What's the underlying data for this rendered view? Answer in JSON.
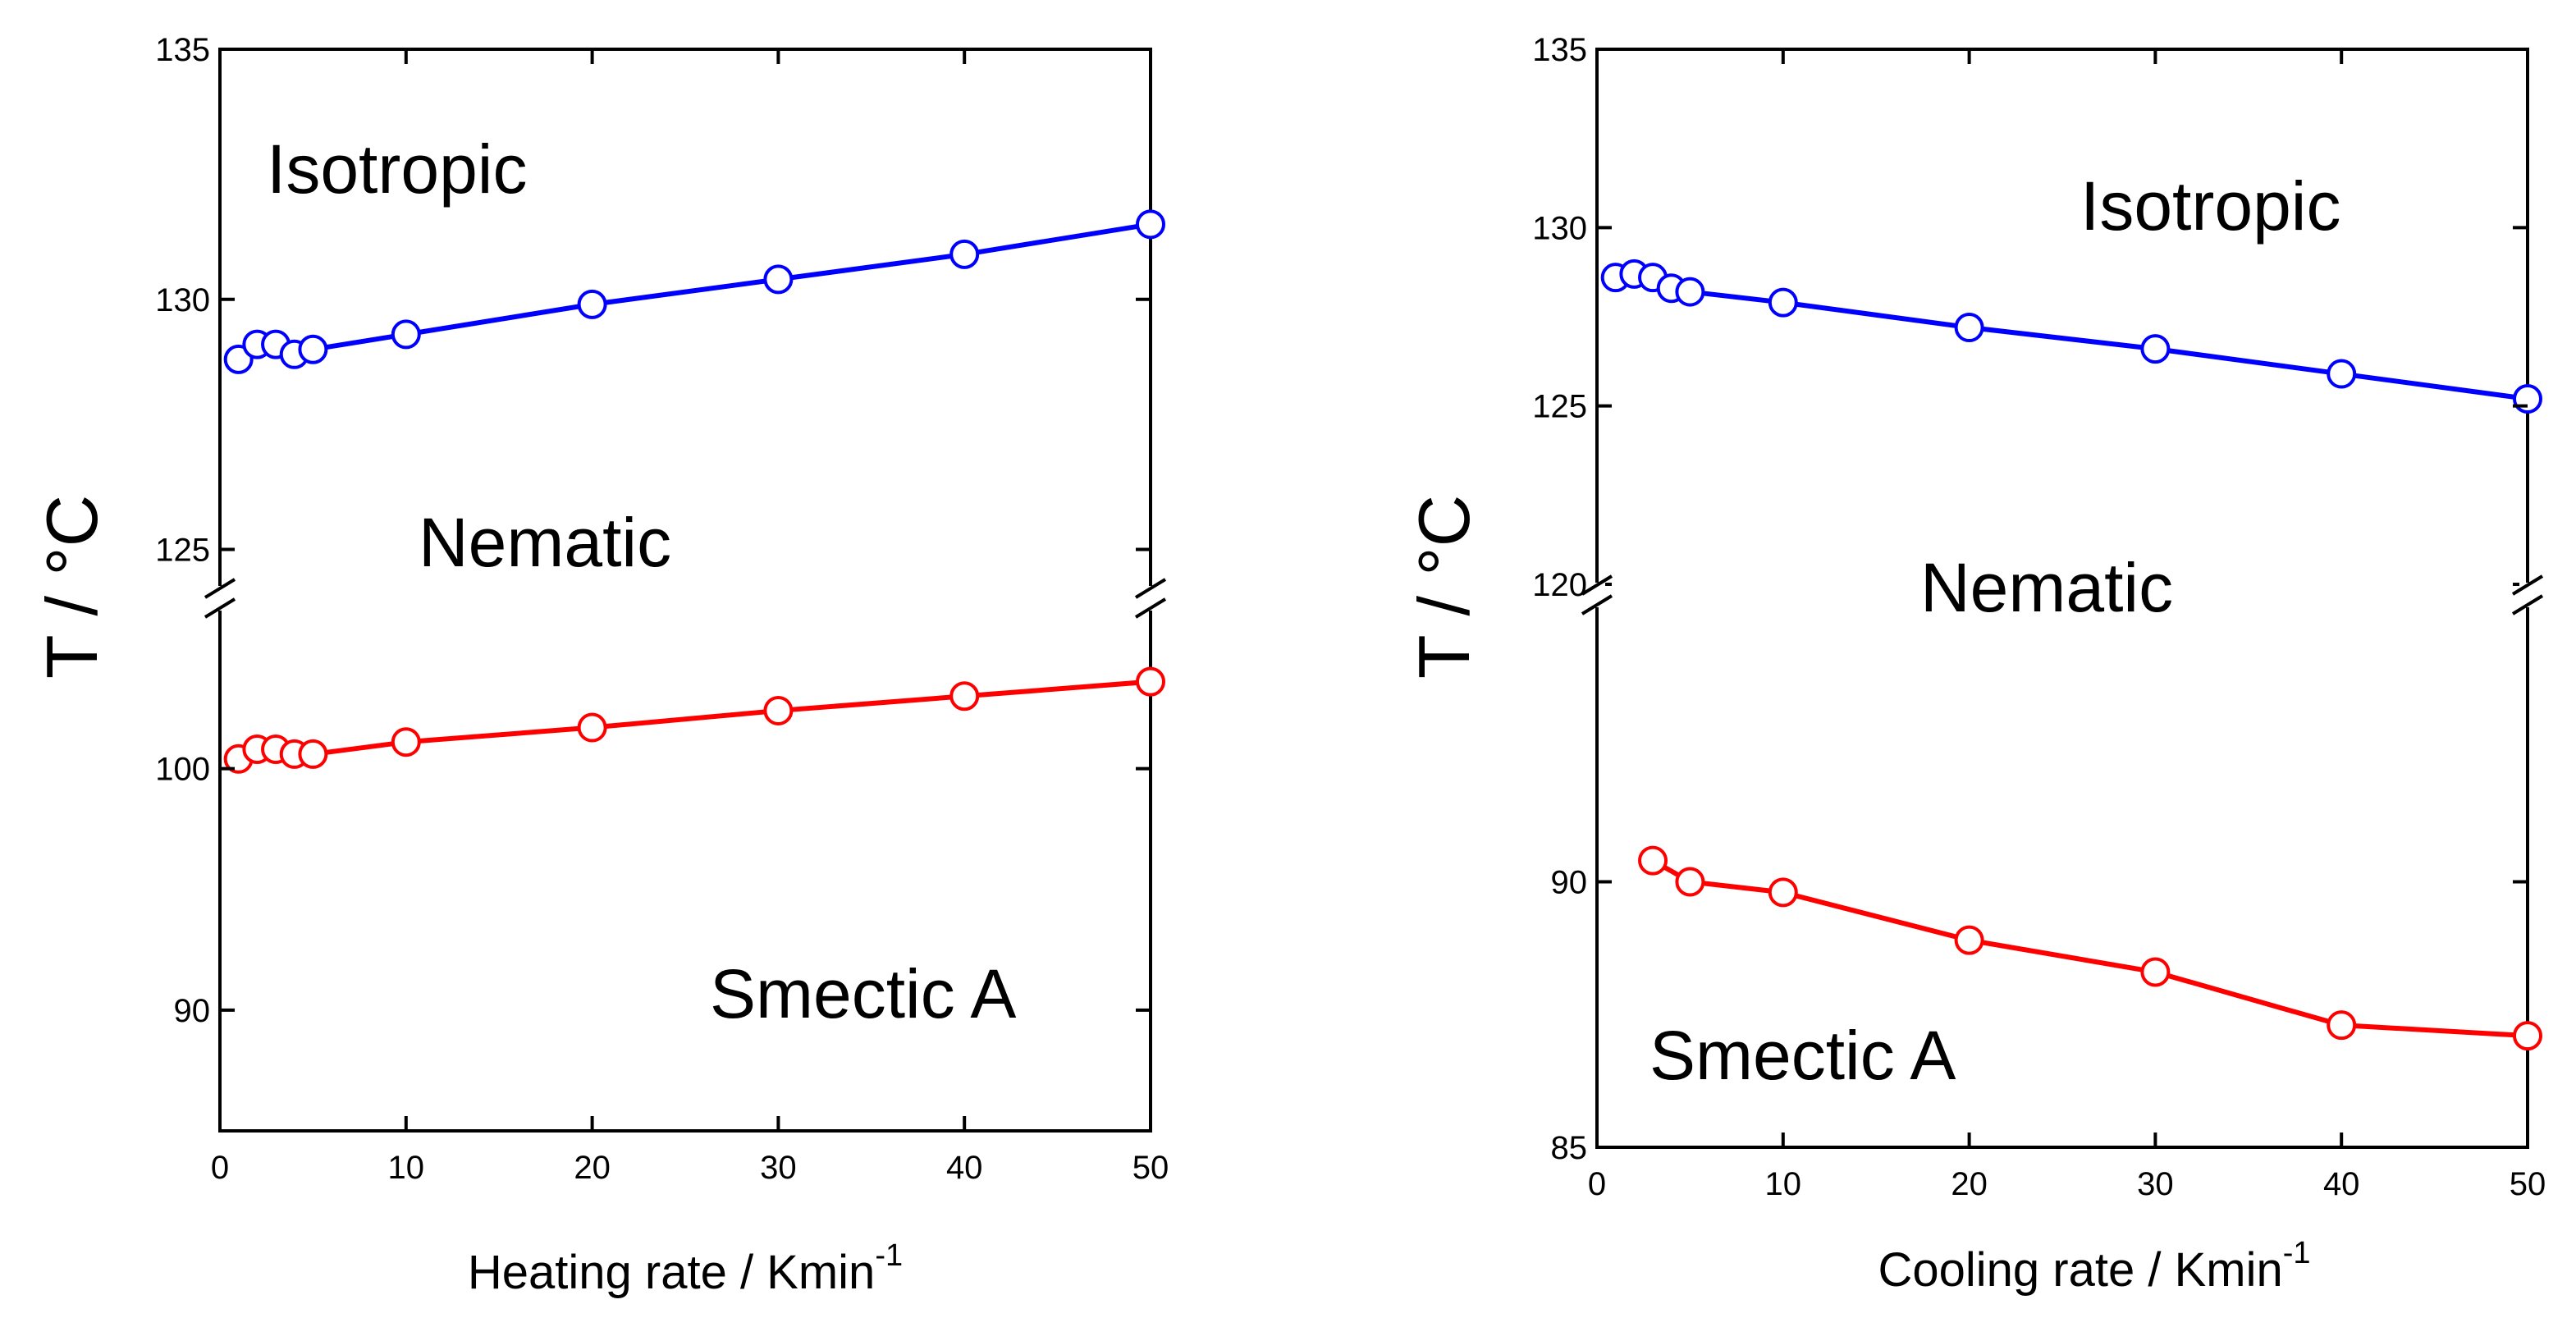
{
  "chart_data": [
    {
      "type": "line",
      "xlabel": "Heating rate / Kmin",
      "xlabel_sup": "-1",
      "ylabel": "T / °C",
      "xlim": [
        0,
        50
      ],
      "x_ticks": [
        "0",
        "10",
        "20",
        "30",
        "40",
        "50"
      ],
      "y_axis_break": true,
      "upper_ylim": [
        124.5,
        135
      ],
      "upper_y_ticks": [
        "125",
        "130",
        "135"
      ],
      "lower_ylim": [
        85,
        106
      ],
      "lower_y_ticks": [
        "90",
        "100"
      ],
      "phase_labels": [
        "Isotropic",
        "Nematic",
        "Smectic A"
      ],
      "series": [
        {
          "segment": "upper",
          "color": "#0000ff",
          "marker": "open-circle",
          "x": [
            1,
            2,
            3,
            4,
            5,
            10,
            20,
            30,
            40,
            50
          ],
          "y": [
            128.8,
            129.1,
            129.1,
            128.9,
            129.0,
            129.3,
            129.9,
            130.4,
            130.9,
            131.5
          ]
        },
        {
          "segment": "lower",
          "color": "#ff0000",
          "marker": "open-circle",
          "x": [
            1,
            2,
            3,
            4,
            5,
            10,
            20,
            30,
            40,
            50
          ],
          "y": [
            100.4,
            100.8,
            100.8,
            100.6,
            100.6,
            101.1,
            101.7,
            102.4,
            103.0,
            103.6
          ]
        }
      ]
    },
    {
      "type": "line",
      "xlabel": "Cooling rate / Kmin",
      "xlabel_sup": "-1",
      "ylabel": "T / °C",
      "xlim": [
        0,
        50
      ],
      "x_ticks": [
        "0",
        "10",
        "20",
        "30",
        "40",
        "50"
      ],
      "y_axis_break": true,
      "upper_ylim": [
        120,
        135
      ],
      "upper_y_ticks": [
        "120",
        "125",
        "130",
        "135"
      ],
      "lower_ylim": [
        85,
        95.2
      ],
      "lower_y_ticks": [
        "85",
        "90"
      ],
      "phase_labels": [
        "Isotropic",
        "Nematic",
        "Smectic A"
      ],
      "series": [
        {
          "segment": "upper",
          "color": "#0000ff",
          "marker": "open-circle",
          "x": [
            1,
            2,
            3,
            4,
            5,
            10,
            20,
            30,
            40,
            50
          ],
          "y": [
            128.6,
            128.7,
            128.6,
            128.3,
            128.2,
            127.9,
            127.2,
            126.6,
            125.9,
            125.2
          ]
        },
        {
          "segment": "lower",
          "color": "#ff0000",
          "marker": "open-circle",
          "x": [
            3,
            5,
            10,
            20,
            30,
            40,
            50
          ],
          "y": [
            90.4,
            90.0,
            89.8,
            88.9,
            88.3,
            87.3,
            87.1
          ]
        }
      ]
    }
  ]
}
